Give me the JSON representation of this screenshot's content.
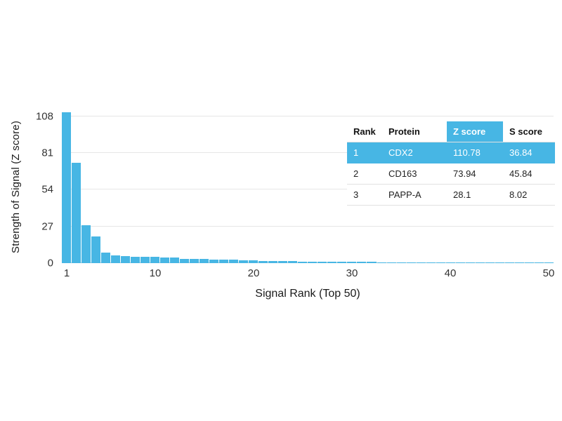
{
  "chart_data": {
    "type": "bar",
    "title": "",
    "xlabel": "Signal Rank (Top 50)",
    "ylabel": "Strength of Signal (Z score)",
    "yticks": [
      0,
      27,
      54,
      81,
      108
    ],
    "xticks": [
      1,
      10,
      20,
      30,
      40,
      50
    ],
    "ylim": [
      0,
      112
    ],
    "xlim": [
      1,
      50
    ],
    "grid": "horizontal",
    "bar_color": "#47B6E4",
    "x": [
      1,
      2,
      3,
      4,
      5,
      6,
      7,
      8,
      9,
      10,
      11,
      12,
      13,
      14,
      15,
      16,
      17,
      18,
      19,
      20,
      21,
      22,
      23,
      24,
      25,
      26,
      27,
      28,
      29,
      30,
      31,
      32,
      33,
      34,
      35,
      36,
      37,
      38,
      39,
      40,
      41,
      42,
      43,
      44,
      45,
      46,
      47,
      48,
      49,
      50
    ],
    "values": [
      110.78,
      73.94,
      28.1,
      19.5,
      7.5,
      5.5,
      5.0,
      4.8,
      4.6,
      4.4,
      4.2,
      4.0,
      3.3,
      3.1,
      2.9,
      2.8,
      2.6,
      2.5,
      2.3,
      2.2,
      1.6,
      1.5,
      1.4,
      1.3,
      1.2,
      1.1,
      1.0,
      1.0,
      0.9,
      0.9,
      0.8,
      0.8,
      0.7,
      0.7,
      0.6,
      0.6,
      0.6,
      0.5,
      0.5,
      0.5,
      0.4,
      0.4,
      0.4,
      0.4,
      0.3,
      0.3,
      0.3,
      0.3,
      0.3,
      0.3
    ]
  },
  "table": {
    "headers": [
      "Rank",
      "Protein",
      "Z score",
      "S score"
    ],
    "highlight_color": "#47B6E4",
    "rows": [
      {
        "rank": "1",
        "protein": "CDX2",
        "z": "110.78",
        "s": "36.84",
        "highlight": true
      },
      {
        "rank": "2",
        "protein": "CD163",
        "z": "73.94",
        "s": "45.84",
        "highlight": false
      },
      {
        "rank": "3",
        "protein": "PAPP-A",
        "z": "28.1",
        "s": "8.02",
        "highlight": false
      }
    ]
  }
}
